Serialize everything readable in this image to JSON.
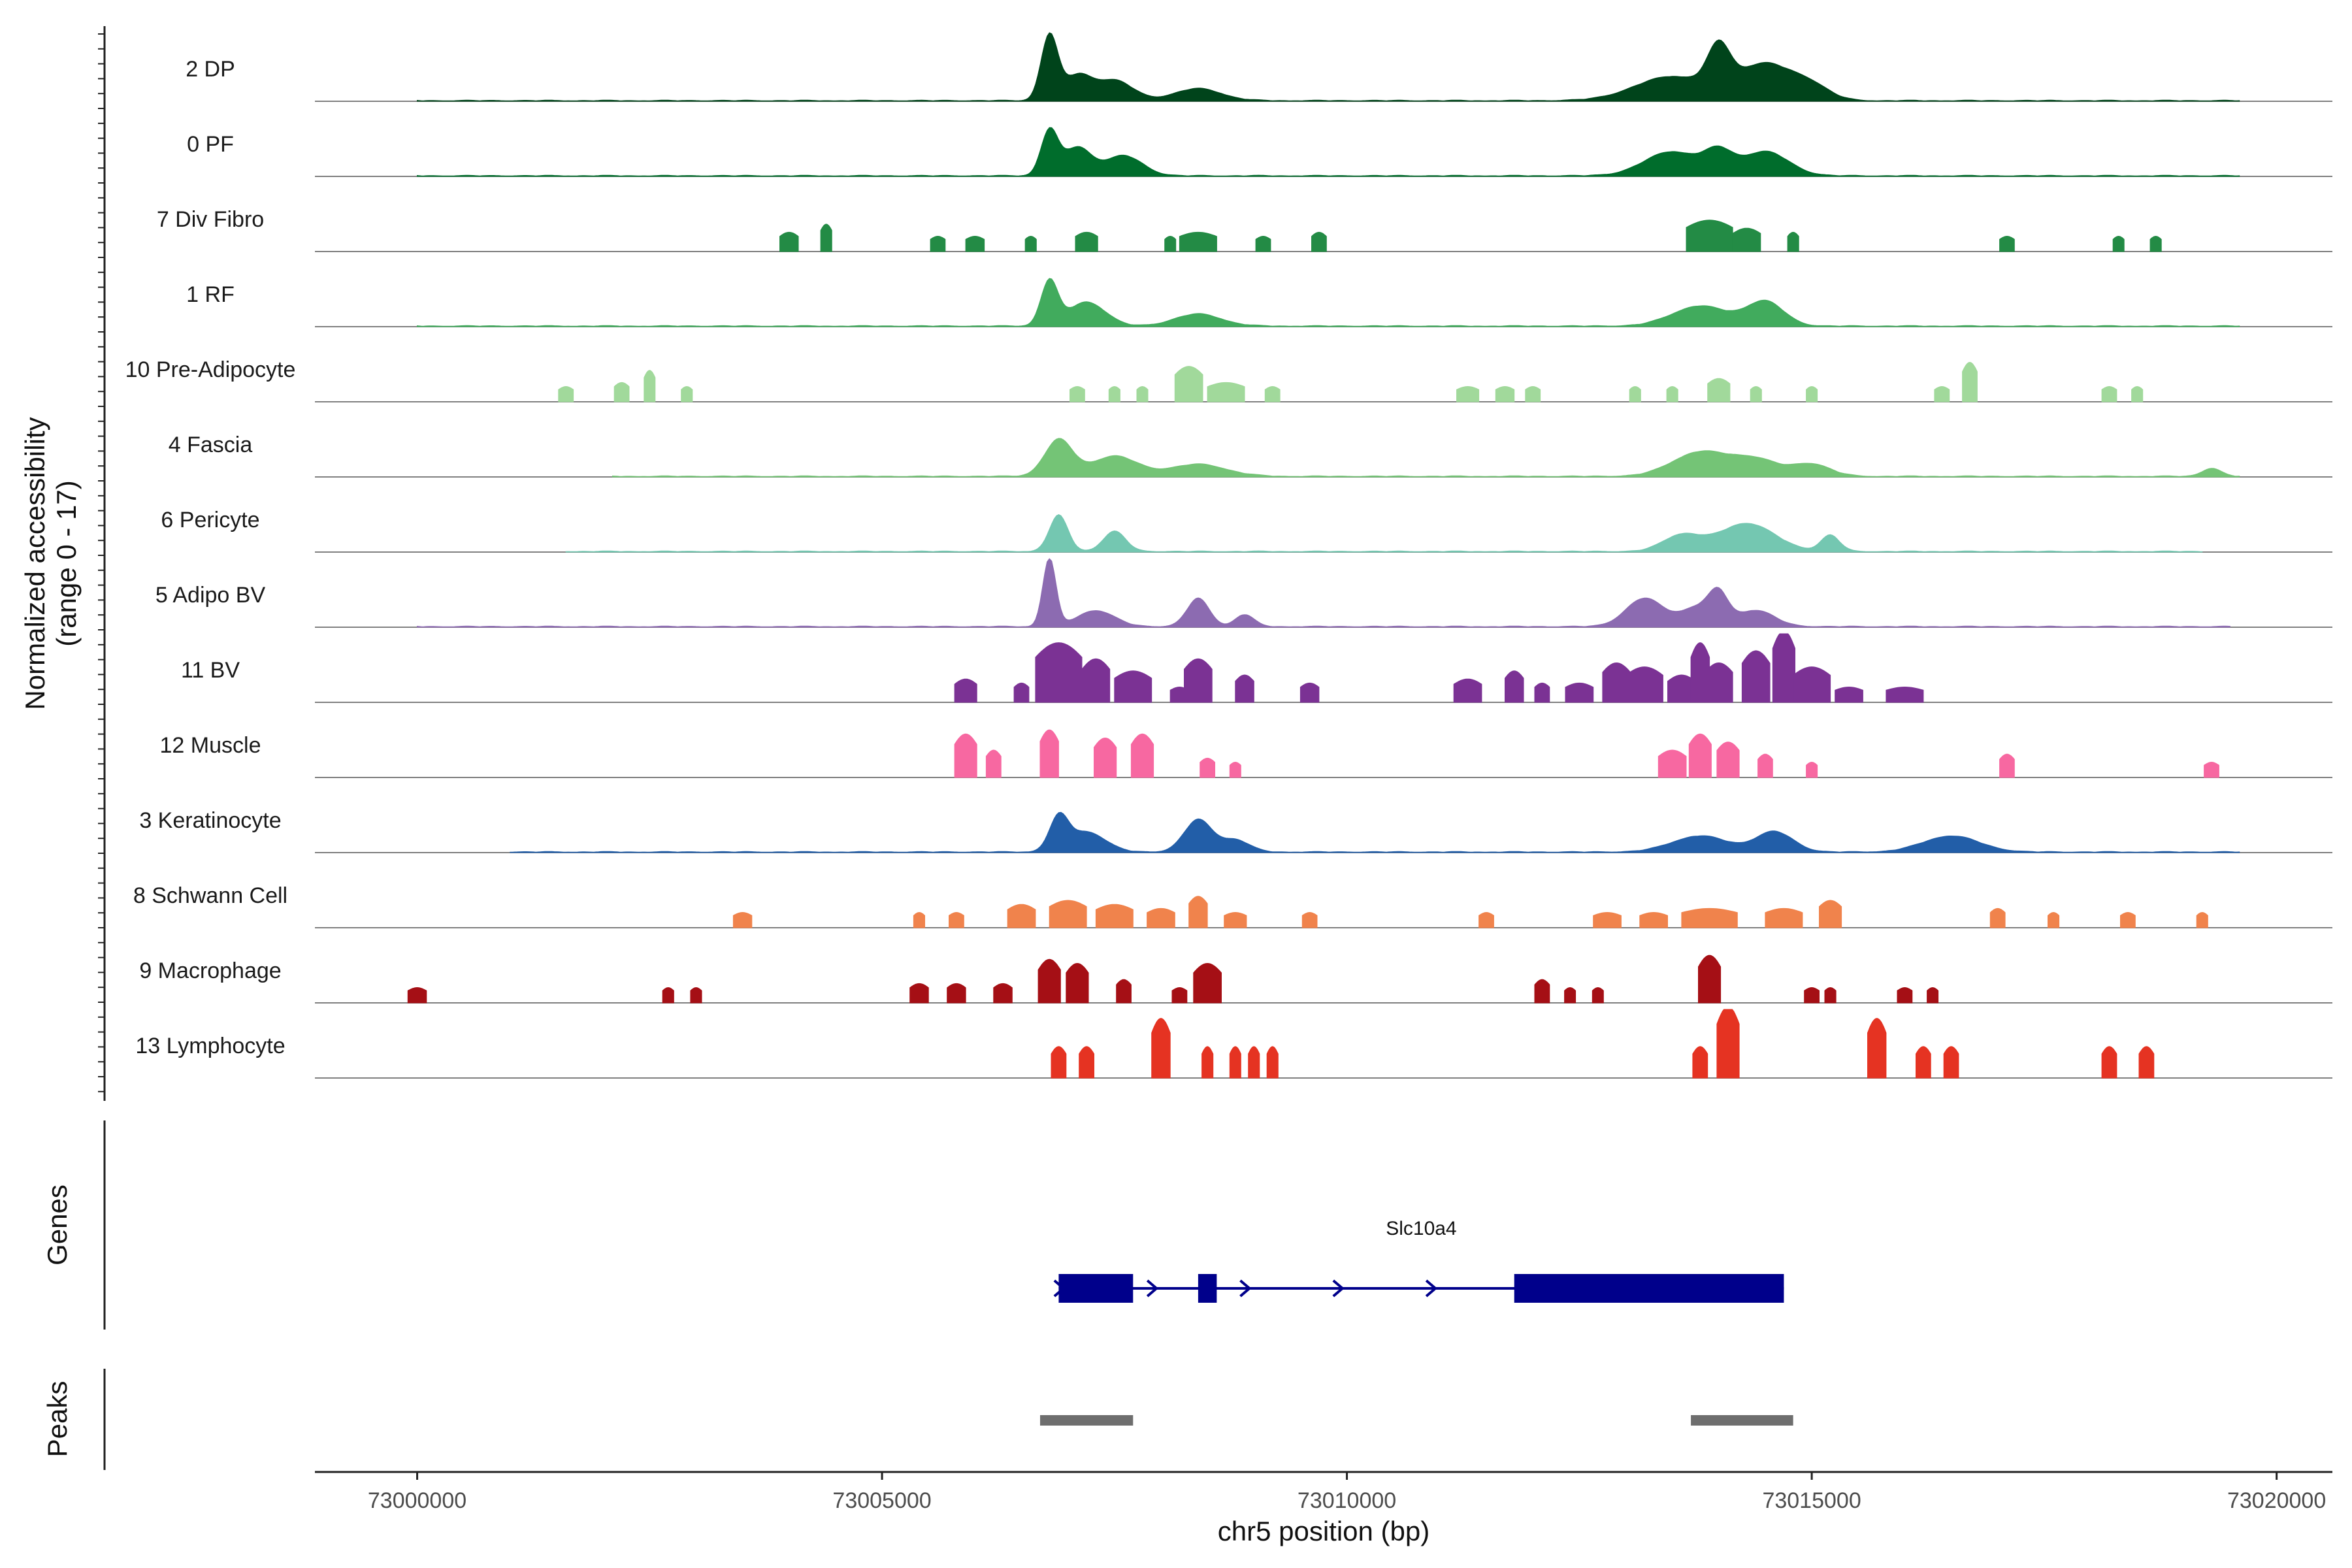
{
  "chart_data": {
    "type": "area",
    "title": "",
    "ylabel_line1": "Normalized accessibility",
    "ylabel_line2": "(range 0 - 17)",
    "yrange": [
      0,
      17
    ],
    "xlabel": "chr5 position (bp)",
    "xlim": [
      72998900,
      73020600
    ],
    "xticks": [
      73000000,
      73005000,
      73010000,
      73015000,
      73020000
    ],
    "xtick_labels": [
      "73000000",
      "73005000",
      "73010000",
      "73015000",
      "73020000"
    ],
    "tracks": [
      {
        "name": "2 DP",
        "color": "#00441b",
        "style": "dense",
        "x_start": 73000000,
        "x_end": 73019600,
        "peaks": [
          [
            73006800,
            16,
            90
          ],
          [
            73007100,
            6,
            150
          ],
          [
            73007500,
            5,
            200
          ],
          [
            73008400,
            3,
            250
          ],
          [
            73013500,
            6,
            400
          ],
          [
            73014000,
            10,
            120
          ],
          [
            73014500,
            9,
            300
          ],
          [
            73015000,
            3,
            200
          ]
        ]
      },
      {
        "name": "0 PF",
        "color": "#006d2c",
        "style": "dense",
        "x_start": 73000000,
        "x_end": 73019600,
        "peaks": [
          [
            73006800,
            11,
            90
          ],
          [
            73007100,
            7,
            150
          ],
          [
            73007600,
            5,
            200
          ],
          [
            73013500,
            6,
            300
          ],
          [
            73014000,
            5,
            150
          ],
          [
            73014500,
            6,
            250
          ]
        ]
      },
      {
        "name": "7 Div Fibro",
        "color": "#238b45",
        "style": "sparse",
        "peaks": [
          [
            73004000,
            4,
            100
          ],
          [
            73004400,
            6,
            60
          ],
          [
            73005600,
            3,
            80
          ],
          [
            73006000,
            3,
            100
          ],
          [
            73006600,
            3,
            60
          ],
          [
            73007200,
            4,
            120
          ],
          [
            73008100,
            3,
            60
          ],
          [
            73008400,
            4,
            200
          ],
          [
            73009100,
            3,
            80
          ],
          [
            73009700,
            4,
            80
          ],
          [
            73013900,
            7,
            250
          ],
          [
            73014300,
            5,
            150
          ],
          [
            73014800,
            4,
            60
          ],
          [
            73017100,
            3,
            80
          ],
          [
            73018300,
            3,
            60
          ],
          [
            73018700,
            3,
            60
          ]
        ]
      },
      {
        "name": "1 RF",
        "color": "#41ab5d",
        "style": "dense",
        "x_start": 73000000,
        "x_end": 73019600,
        "peaks": [
          [
            73006800,
            11,
            90
          ],
          [
            73007200,
            6,
            200
          ],
          [
            73008400,
            3,
            250
          ],
          [
            73013800,
            5,
            300
          ],
          [
            73014500,
            6,
            200
          ]
        ]
      },
      {
        "name": "10 Pre-Adipocyte",
        "color": "#a1d99b",
        "style": "sparse",
        "peaks": [
          [
            73001600,
            3,
            80
          ],
          [
            73002200,
            4,
            80
          ],
          [
            73002500,
            7,
            60
          ],
          [
            73002900,
            3,
            60
          ],
          [
            73007100,
            3,
            80
          ],
          [
            73007500,
            3,
            60
          ],
          [
            73007800,
            3,
            60
          ],
          [
            73008300,
            8,
            150
          ],
          [
            73008700,
            4,
            200
          ],
          [
            73009200,
            3,
            80
          ],
          [
            73011300,
            3,
            120
          ],
          [
            73011700,
            3,
            100
          ],
          [
            73012000,
            3,
            80
          ],
          [
            73013100,
            3,
            60
          ],
          [
            73013500,
            3,
            60
          ],
          [
            73014000,
            5,
            120
          ],
          [
            73014400,
            3,
            60
          ],
          [
            73015000,
            3,
            60
          ],
          [
            73016400,
            3,
            80
          ],
          [
            73016700,
            9,
            80
          ],
          [
            73018200,
            3,
            80
          ],
          [
            73018500,
            3,
            60
          ]
        ]
      },
      {
        "name": "4 Fascia",
        "color": "#74c476",
        "style": "dense",
        "x_start": 73002100,
        "x_end": 73019600,
        "peaks": [
          [
            73006900,
            9,
            150
          ],
          [
            73007500,
            5,
            250
          ],
          [
            73008400,
            3,
            300
          ],
          [
            73013800,
            6,
            300
          ],
          [
            73014400,
            4,
            250
          ],
          [
            73015000,
            3,
            200
          ],
          [
            73019300,
            2,
            100
          ]
        ]
      },
      {
        "name": "6 Pericyte",
        "color": "#74c7b1",
        "style": "dense",
        "x_start": 73001600,
        "x_end": 73019200,
        "peaks": [
          [
            73006900,
            9,
            100
          ],
          [
            73007500,
            5,
            120
          ],
          [
            73013600,
            4,
            200
          ],
          [
            73014300,
            7,
            300
          ],
          [
            73015200,
            4,
            100
          ]
        ]
      },
      {
        "name": "5 Adipo BV",
        "color": "#8c6bb1",
        "style": "dense",
        "x_start": 73000000,
        "x_end": 73019500,
        "peaks": [
          [
            73006800,
            17,
            70
          ],
          [
            73007300,
            4,
            200
          ],
          [
            73008400,
            7,
            120
          ],
          [
            73008900,
            3,
            100
          ],
          [
            73013200,
            7,
            200
          ],
          [
            73013800,
            5,
            200
          ],
          [
            73014000,
            6,
            100
          ],
          [
            73014400,
            4,
            200
          ]
        ]
      },
      {
        "name": "11 BV",
        "color": "#7b3294",
        "style": "sparse",
        "peaks": [
          [
            73005900,
            5,
            120
          ],
          [
            73006500,
            4,
            80
          ],
          [
            73006900,
            14,
            250
          ],
          [
            73007300,
            10,
            150
          ],
          [
            73007700,
            7,
            200
          ],
          [
            73008200,
            3,
            100
          ],
          [
            73008400,
            10,
            150
          ],
          [
            73008900,
            6,
            100
          ],
          [
            73009600,
            4,
            100
          ],
          [
            73011300,
            5,
            150
          ],
          [
            73011800,
            7,
            100
          ],
          [
            73012100,
            4,
            80
          ],
          [
            73012500,
            4,
            150
          ],
          [
            73012900,
            9,
            150
          ],
          [
            73013200,
            8,
            200
          ],
          [
            73013600,
            6,
            150
          ],
          [
            73013800,
            14,
            100
          ],
          [
            73014000,
            9,
            150
          ],
          [
            73014400,
            12,
            150
          ],
          [
            73014700,
            17,
            120
          ],
          [
            73015000,
            8,
            200
          ],
          [
            73015400,
            3,
            150
          ],
          [
            73016000,
            3,
            200
          ]
        ]
      },
      {
        "name": "12 Muscle",
        "color": "#f768a1",
        "style": "sparse",
        "peaks": [
          [
            73005900,
            10,
            120
          ],
          [
            73006200,
            6,
            80
          ],
          [
            73006800,
            11,
            100
          ],
          [
            73007400,
            9,
            120
          ],
          [
            73007800,
            10,
            120
          ],
          [
            73008500,
            4,
            80
          ],
          [
            73008800,
            3,
            60
          ],
          [
            73013500,
            6,
            150
          ],
          [
            73013800,
            10,
            120
          ],
          [
            73014100,
            8,
            120
          ],
          [
            73014500,
            5,
            80
          ],
          [
            73015000,
            3,
            60
          ],
          [
            73017100,
            5,
            80
          ],
          [
            73019300,
            3,
            80
          ]
        ]
      },
      {
        "name": "3 Keratinocyte",
        "color": "#225ea8",
        "style": "dense",
        "x_start": 73001000,
        "x_end": 73019600,
        "peaks": [
          [
            73006900,
            8,
            100
          ],
          [
            73007200,
            5,
            200
          ],
          [
            73008400,
            8,
            150
          ],
          [
            73008800,
            3,
            150
          ],
          [
            73013800,
            4,
            300
          ],
          [
            73014600,
            5,
            200
          ],
          [
            73016500,
            4,
            300
          ]
        ]
      },
      {
        "name": "8 Schwann Cell",
        "color": "#f0834c",
        "style": "sparse",
        "peaks": [
          [
            73003500,
            3,
            100
          ],
          [
            73005400,
            3,
            60
          ],
          [
            73005800,
            3,
            80
          ],
          [
            73006500,
            5,
            150
          ],
          [
            73007000,
            6,
            200
          ],
          [
            73007500,
            5,
            200
          ],
          [
            73008000,
            4,
            150
          ],
          [
            73008400,
            7,
            100
          ],
          [
            73008800,
            3,
            120
          ],
          [
            73009600,
            3,
            80
          ],
          [
            73011500,
            3,
            80
          ],
          [
            73012800,
            3,
            150
          ],
          [
            73013300,
            3,
            150
          ],
          [
            73013900,
            4,
            300
          ],
          [
            73014700,
            4,
            200
          ],
          [
            73015200,
            6,
            120
          ],
          [
            73017000,
            4,
            80
          ],
          [
            73017600,
            3,
            60
          ],
          [
            73018400,
            3,
            80
          ],
          [
            73019200,
            3,
            60
          ]
        ]
      },
      {
        "name": "9 Macrophage",
        "color": "#a50f15",
        "style": "sparse",
        "peaks": [
          [
            73000000,
            3,
            100
          ],
          [
            73002700,
            3,
            60
          ],
          [
            73003000,
            3,
            60
          ],
          [
            73005400,
            4,
            100
          ],
          [
            73005800,
            4,
            100
          ],
          [
            73006300,
            4,
            100
          ],
          [
            73006800,
            10,
            120
          ],
          [
            73007100,
            9,
            120
          ],
          [
            73007600,
            5,
            80
          ],
          [
            73008200,
            3,
            80
          ],
          [
            73008500,
            9,
            150
          ],
          [
            73012100,
            5,
            80
          ],
          [
            73012400,
            3,
            60
          ],
          [
            73012700,
            3,
            60
          ],
          [
            73013900,
            11,
            120
          ],
          [
            73015000,
            3,
            80
          ],
          [
            73015200,
            3,
            60
          ],
          [
            73016000,
            3,
            80
          ],
          [
            73016300,
            3,
            60
          ]
        ]
      },
      {
        "name": "13 Lymphocyte",
        "color": "#e53322",
        "style": "sparse",
        "peaks": [
          [
            73006900,
            7,
            80
          ],
          [
            73007200,
            7,
            80
          ],
          [
            73008000,
            14,
            100
          ],
          [
            73008500,
            7,
            60
          ],
          [
            73008800,
            7,
            60
          ],
          [
            73009000,
            7,
            60
          ],
          [
            73009200,
            7,
            60
          ],
          [
            73013800,
            7,
            80
          ],
          [
            73014100,
            17,
            120
          ],
          [
            73015700,
            14,
            100
          ],
          [
            73016200,
            7,
            80
          ],
          [
            73016500,
            7,
            80
          ],
          [
            73018200,
            7,
            80
          ],
          [
            73018600,
            7,
            80
          ]
        ]
      }
    ],
    "genes_panel_label": "Genes",
    "gene": {
      "name": "Slc10a4",
      "color": "#00008b",
      "strand": "+",
      "start": 73006900,
      "end": 73014700,
      "exons": [
        [
          73006900,
          73007700
        ],
        [
          73008400,
          73008600
        ],
        [
          73011800,
          73014700
        ]
      ]
    },
    "peaks_panel_label": "Peaks",
    "peak_regions": {
      "color": "#6e6e6e",
      "regions": [
        [
          73006700,
          73007700
        ],
        [
          73013700,
          73014800
        ]
      ]
    }
  }
}
